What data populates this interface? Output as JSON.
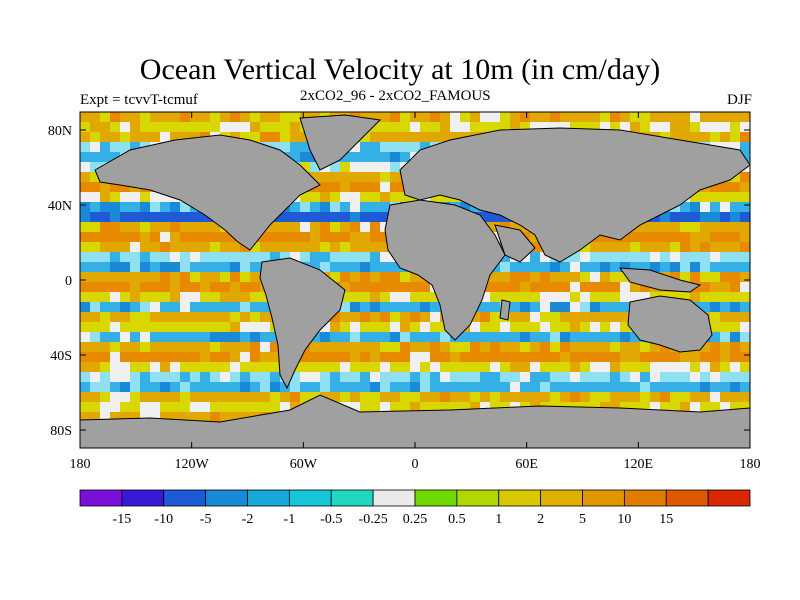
{
  "header": {
    "title": "Ocean Vertical Velocity at 10m (in cm/day)",
    "experiment": "Expt = tcvvT-tcmuf",
    "subtitle": "2xCO2_96 - 2xCO2_FAMOUS",
    "season": "DJF"
  },
  "map": {
    "lon_labels": [
      "180",
      "120W",
      "60W",
      "0",
      "60E",
      "120E",
      "180"
    ],
    "lat_labels": [
      "80N",
      "40N",
      "0",
      "40S",
      "80S"
    ],
    "land_color": "#a0a0a0",
    "ocean_field_colors": [
      "#1f5ad6",
      "#1a8ad8",
      "#35b0e6",
      "#8fe0f0",
      "#f0f0f0",
      "#d8d800",
      "#e0a800",
      "#e88a00"
    ]
  },
  "colorbar": {
    "colors": [
      "#7a10d8",
      "#3a18d8",
      "#1f5ad6",
      "#1a8ad8",
      "#17a8d8",
      "#18c4d8",
      "#20d8c0",
      "#eaeaea",
      "#6ed800",
      "#b0d800",
      "#d8c800",
      "#e0b000",
      "#e09800",
      "#e07c00",
      "#e05800",
      "#d82800"
    ],
    "labels": [
      "-15",
      "-10",
      "-5",
      "-2",
      "-1",
      "-0.5",
      "-0.25",
      "0.25",
      "0.5",
      "1",
      "2",
      "5",
      "10",
      "15"
    ]
  }
}
